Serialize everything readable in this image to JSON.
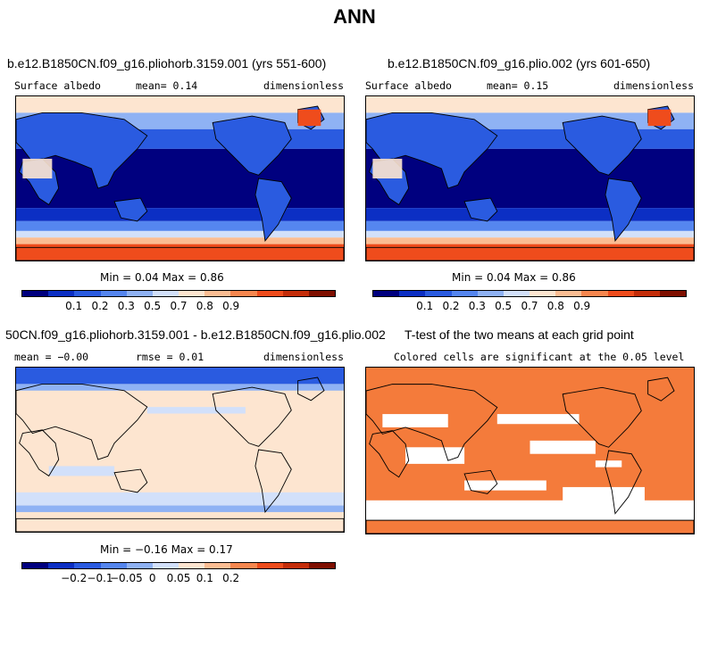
{
  "page_title": "ANN",
  "colors": {
    "palette_abs": [
      "#00007f",
      "#0c2fc4",
      "#2a5be0",
      "#5586ef",
      "#8fb2f4",
      "#d2e0fa",
      "#fde5d0",
      "#fbbd93",
      "#f7874f",
      "#ef4c1c",
      "#c42d0a",
      "#7f0f00"
    ],
    "palette_diff": [
      "#00007f",
      "#0c2fc4",
      "#2a5be0",
      "#5586ef",
      "#8fb2f4",
      "#d2e0fa",
      "#fde5d0",
      "#fbbd93",
      "#f7874f",
      "#ef4c1c",
      "#c42d0a",
      "#7f0f00"
    ],
    "significant": "#f47b3b"
  },
  "panels": {
    "p1": {
      "title": "b.e12.B1850CN.f09_g16.pliohorb.3159.001 (yrs 551-600)",
      "left": "Surface albedo",
      "center": "mean=   0.14",
      "right": "dimensionless",
      "minmax": "Min =   0.04 Max =   0.86",
      "ticks": [
        "0.1",
        "0.2",
        "0.3",
        "0.5",
        "0.7",
        "0.8",
        "0.9"
      ]
    },
    "p2": {
      "title": "b.e12.B1850CN.f09_g16.plio.002 (yrs 601-650)",
      "left": "Surface albedo",
      "center": "mean=   0.15",
      "right": "dimensionless",
      "minmax": "Min =   0.04 Max =   0.86",
      "ticks": [
        "0.1",
        "0.2",
        "0.3",
        "0.5",
        "0.7",
        "0.8",
        "0.9"
      ]
    },
    "p3": {
      "title": "50CN.f09_g16.pliohorb.3159.001 - b.e12.B1850CN.f09_g16.plio.002",
      "left": "mean =  −0.00",
      "center": "rmse =   0.01",
      "right": "dimensionless",
      "minmax": "Min =  −0.16 Max =   0.17",
      "ticks": [
        "−0.2",
        "−0.1",
        "−0.05",
        "0",
        "0.05",
        "0.1",
        "0.2"
      ]
    },
    "p4": {
      "title": "T-test of the two means at each grid point",
      "subtitle": "Colored cells are significant at the 0.05 level"
    }
  },
  "chart_data": [
    {
      "type": "heatmap",
      "title": "b.e12.B1850CN.f09_g16.pliohorb.3159.001 (yrs 551-600)",
      "variable": "Surface albedo",
      "units": "dimensionless",
      "mean": 0.14,
      "min": 0.04,
      "max": 0.86,
      "colorbar_levels": [
        0.1,
        0.2,
        0.3,
        0.5,
        0.7,
        0.8,
        0.9
      ]
    },
    {
      "type": "heatmap",
      "title": "b.e12.B1850CN.f09_g16.plio.002 (yrs 601-650)",
      "variable": "Surface albedo",
      "units": "dimensionless",
      "mean": 0.15,
      "min": 0.04,
      "max": 0.86,
      "colorbar_levels": [
        0.1,
        0.2,
        0.3,
        0.5,
        0.7,
        0.8,
        0.9
      ]
    },
    {
      "type": "heatmap",
      "title": "50CN.f09_g16.pliohorb.3159.001 - b.e12.B1850CN.f09_g16.plio.002",
      "units": "dimensionless",
      "mean": -0.0,
      "rmse": 0.01,
      "min": -0.16,
      "max": 0.17,
      "colorbar_levels": [
        -0.2,
        -0.1,
        -0.05,
        0,
        0.05,
        0.1,
        0.2
      ]
    },
    {
      "type": "heatmap",
      "title": "T-test of the two means at each grid point",
      "subtitle": "Colored cells are significant at the 0.05 level"
    }
  ]
}
